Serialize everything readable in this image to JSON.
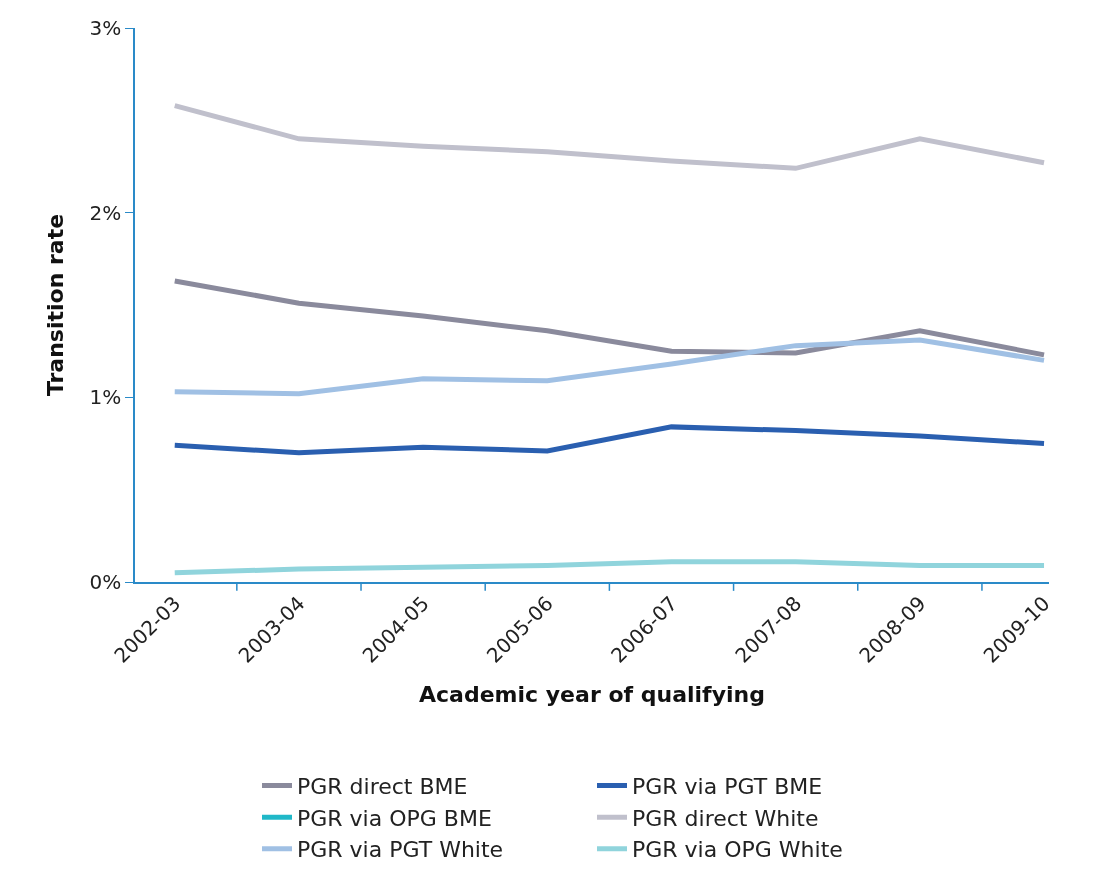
{
  "chart_data": {
    "type": "line",
    "xlabel": "Academic year of qualifying",
    "ylabel": "Transition rate",
    "categories": [
      "2002-03",
      "2003-04",
      "2004-05",
      "2005-06",
      "2006-07",
      "2007-08",
      "2008-09",
      "2009-10"
    ],
    "ylim": [
      0,
      3
    ],
    "yticks": [
      {
        "value": 0,
        "label": "0%"
      },
      {
        "value": 1,
        "label": "1%"
      },
      {
        "value": 2,
        "label": "2%"
      },
      {
        "value": 3,
        "label": "3%"
      }
    ],
    "grid": false,
    "legend": "bottom",
    "marker": "none",
    "line_style": "solid",
    "series": [
      {
        "name": "PGR direct BME",
        "color": "#8a8a9c",
        "values": [
          1.63,
          1.51,
          1.44,
          1.36,
          1.25,
          1.24,
          1.36,
          1.23
        ]
      },
      {
        "name": "PGR via PGT BME",
        "color": "#2a5fb0",
        "values": [
          0.74,
          0.7,
          0.73,
          0.71,
          0.84,
          0.82,
          0.79,
          0.75
        ]
      },
      {
        "name": "PGR via OPG BME",
        "color": "#20b8c8",
        "values": [
          null,
          null,
          null,
          null,
          null,
          null,
          null,
          null
        ]
      },
      {
        "name": "PGR direct White",
        "color": "#c0c0cc",
        "values": [
          2.58,
          2.4,
          2.36,
          2.33,
          2.28,
          2.24,
          2.4,
          2.27
        ]
      },
      {
        "name": "PGR via PGT White",
        "color": "#a0c0e4",
        "values": [
          1.03,
          1.02,
          1.1,
          1.09,
          1.18,
          1.28,
          1.31,
          1.2
        ]
      },
      {
        "name": "PGR via OPG White",
        "color": "#90d4dc",
        "values": [
          0.05,
          0.07,
          0.08,
          0.09,
          0.11,
          0.11,
          0.09,
          0.09
        ]
      }
    ]
  }
}
